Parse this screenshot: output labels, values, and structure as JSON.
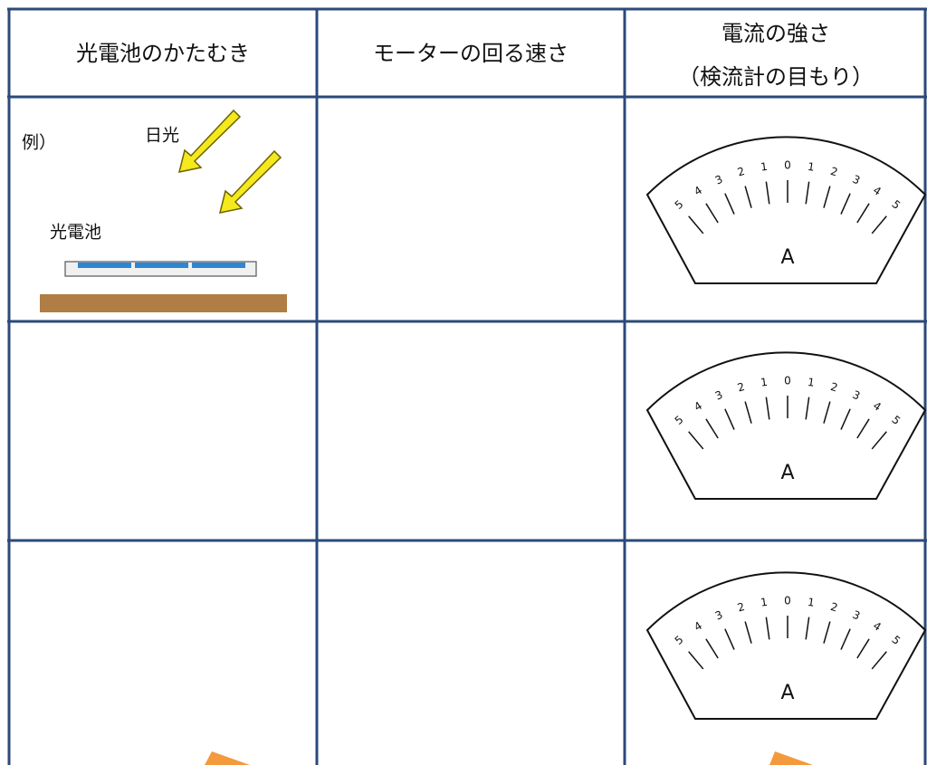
{
  "header": {
    "columns": [
      [
        "光電池のかたむき"
      ],
      [
        "モーターの回る速さ"
      ],
      [
        "電流の強さ",
        "（検流計の目もり）"
      ]
    ]
  },
  "example": {
    "label": "例）",
    "sunlight": "日光",
    "cell": "光電池"
  },
  "meter": {
    "scale_labels": [
      "5",
      "4",
      "3",
      "2",
      "1",
      "0",
      "1",
      "2",
      "3",
      "4",
      "5"
    ],
    "unit": "A"
  }
}
